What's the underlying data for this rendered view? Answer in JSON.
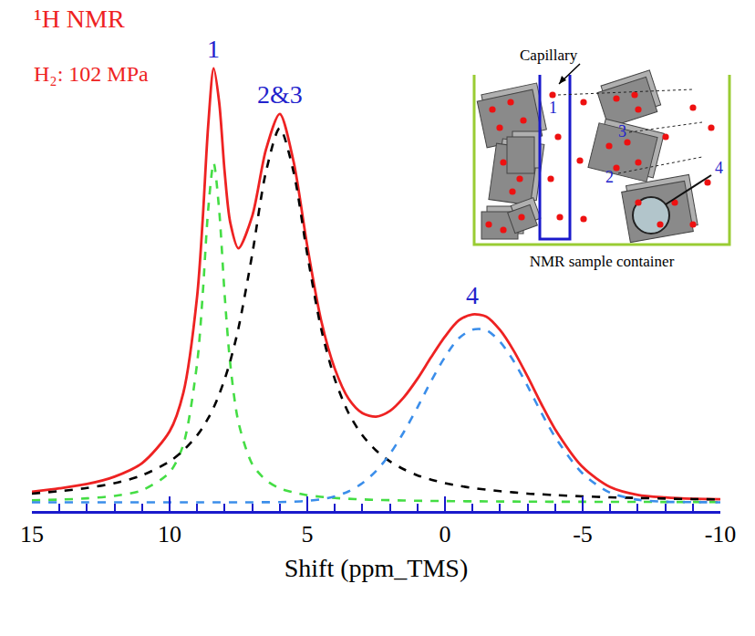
{
  "chart_data": {
    "type": "line",
    "title": "¹H NMR",
    "subtitle": "H₂: 102 MPa",
    "x_label": "Shift (ppm_TMS)",
    "x": [
      15,
      14,
      13,
      12,
      11,
      10,
      9.5,
      9,
      8.8,
      8.6,
      8.4,
      8.2,
      8,
      7.8,
      7.5,
      7,
      6.5,
      6,
      5.5,
      5,
      4.5,
      4,
      3.5,
      3,
      2.5,
      2,
      1.5,
      1,
      0.5,
      0,
      -0.5,
      -1,
      -1.5,
      -2,
      -2.5,
      -3,
      -3.5,
      -4,
      -5,
      -6,
      -7,
      -8,
      -9,
      -10
    ],
    "series": [
      {
        "color": "#ee2222",
        "line_style": "solid",
        "values": [
          2.4,
          3.2,
          4.2,
          5.9,
          9.0,
          16.3,
          25.2,
          47.4,
          64.8,
          86.5,
          99.8,
          92.0,
          75.9,
          64.4,
          58.4,
          65.8,
          81.1,
          89.3,
          78.4,
          58.9,
          41.9,
          30.7,
          23.8,
          20.5,
          19.7,
          21.0,
          24.1,
          28.4,
          33.4,
          38.1,
          41.8,
          43.2,
          42.7,
          39.6,
          34.8,
          28.9,
          22.6,
          16.8,
          8.1,
          3.5,
          1.7,
          1.1,
          0.8,
          0.7
        ]
      },
      {
        "name": "1",
        "color": "#44dd44",
        "line_style": "dashed",
        "values": [
          0.44,
          0.62,
          0.91,
          1.47,
          2.78,
          6.9,
          13.3,
          32,
          47.6,
          67.2,
          78,
          67.2,
          47.6,
          32,
          18.4,
          8.8,
          5.1,
          3.2,
          2.3,
          1.6,
          1.26,
          1.0,
          0.8,
          0.66,
          0.55,
          0.48,
          0.41,
          0.36,
          0.31,
          0.28,
          0.25,
          0.23,
          0.21,
          0.18,
          0.17,
          0.16,
          0.14,
          0.13,
          0.12,
          0.1,
          0.09,
          0.08,
          0.07,
          0.05
        ]
      },
      {
        "name": "2&3",
        "color": "#000000",
        "line_style": "dashed",
        "values": [
          2.0,
          2.56,
          3.3,
          4.4,
          6.2,
          9.4,
          11.9,
          15.4,
          17.2,
          19.3,
          21.8,
          24.8,
          28.3,
          32.4,
          40,
          57,
          76,
          86,
          76,
          57,
          40,
          28.3,
          20.5,
          15.4,
          11.9,
          9.4,
          7.6,
          6.2,
          5.2,
          4.4,
          3.8,
          3.3,
          2.9,
          2.56,
          2.27,
          2.0,
          1.83,
          1.65,
          1.37,
          1.15,
          0.99,
          0.85,
          0.74,
          0.65
        ]
      },
      {
        "name": "4",
        "color": "#3b8eea",
        "line_style": "dashed",
        "values": [
          0,
          0,
          0,
          0,
          0,
          0,
          0,
          0,
          0,
          0,
          0,
          0,
          0,
          0,
          0,
          0,
          0.02,
          0.06,
          0.14,
          0.32,
          0.68,
          1.37,
          2.5,
          4.4,
          7.2,
          11.1,
          16.1,
          21.8,
          27.9,
          33.4,
          37.7,
          39.7,
          39.6,
          36.9,
          32.4,
          26.7,
          20.6,
          15.0,
          6.6,
          2.2,
          0.6,
          0.13,
          0.03,
          0
        ]
      }
    ],
    "xlim": [
      15,
      -10
    ],
    "xticks": [
      15,
      10,
      5,
      0,
      -5,
      -10
    ],
    "ylim": [
      -2,
      105
    ],
    "tick_labels": "x",
    "grid": false
  },
  "inset": {
    "capillary_label": "Capillary",
    "container_label": "NMR sample container",
    "site_labels": [
      "1",
      "2",
      "3",
      "4"
    ]
  }
}
